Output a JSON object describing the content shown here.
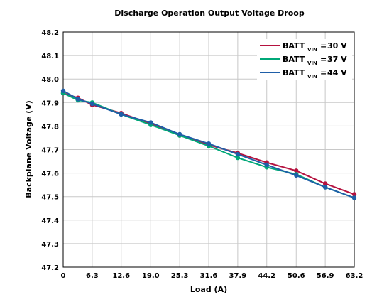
{
  "chart_data": {
    "type": "line",
    "title": "Discharge Operation Output Voltage Droop",
    "xlabel": "Load (A)",
    "ylabel": "Backplane Voltage (V)",
    "xlim": [
      0,
      63.2
    ],
    "ylim": [
      47.2,
      48.2
    ],
    "x_ticks": [
      "0",
      "6.3",
      "12.6",
      "19.0",
      "25.3",
      "31.6",
      "37.9",
      "44.2",
      "50.6",
      "56.9",
      "63.2"
    ],
    "y_ticks": [
      "47.2",
      "47.3",
      "47.4",
      "47.5",
      "47.6",
      "47.7",
      "47.8",
      "47.9",
      "48.0",
      "48.1",
      "48.2"
    ],
    "grid": true,
    "legend_position": "top-right",
    "series": [
      {
        "name": "30 V",
        "legend_prefix": "BATT",
        "legend_sub": "VIN",
        "color": "#b5123f",
        "x": [
          0,
          3.2,
          6.3,
          12.6,
          19.0,
          25.3,
          31.6,
          37.9,
          44.2,
          50.6,
          56.9,
          63.2
        ],
        "y": [
          47.94,
          47.92,
          47.89,
          47.855,
          47.81,
          47.76,
          47.72,
          47.685,
          47.645,
          47.61,
          47.555,
          47.51
        ]
      },
      {
        "name": "37 V",
        "legend_prefix": "BATT",
        "legend_sub": "VIN",
        "color": "#00a878",
        "x": [
          0,
          3.2,
          6.3,
          12.6,
          19.0,
          25.3,
          31.6,
          37.9,
          44.2,
          50.6,
          56.9,
          63.2
        ],
        "y": [
          47.94,
          47.91,
          47.9,
          47.85,
          47.805,
          47.76,
          47.715,
          47.665,
          47.625,
          47.595,
          47.54,
          47.495
        ]
      },
      {
        "name": "44 V",
        "legend_prefix": "BATT",
        "legend_sub": "VIN",
        "color": "#1f5fa8",
        "x": [
          0,
          3.2,
          6.3,
          12.6,
          19.0,
          25.3,
          31.6,
          37.9,
          44.2,
          50.6,
          56.9,
          63.2
        ],
        "y": [
          47.95,
          47.915,
          47.895,
          47.85,
          47.815,
          47.765,
          47.725,
          47.68,
          47.635,
          47.59,
          47.54,
          47.495
        ]
      }
    ]
  }
}
